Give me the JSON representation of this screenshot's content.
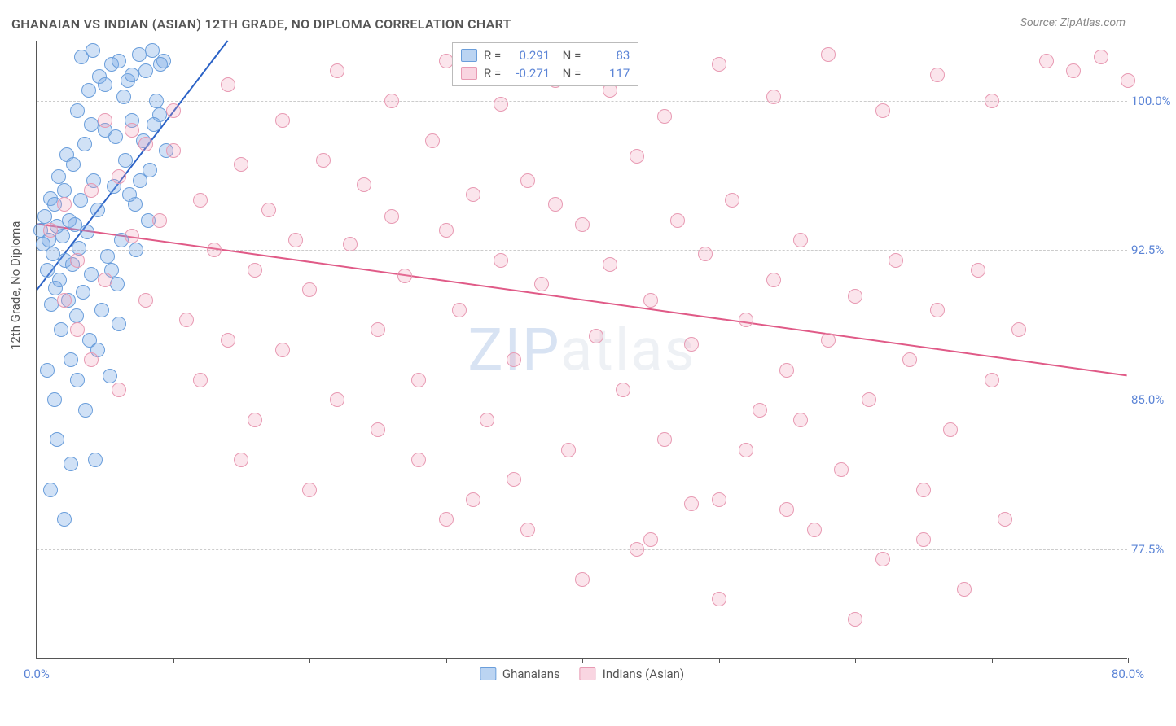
{
  "title": "GHANAIAN VS INDIAN (ASIAN) 12TH GRADE, NO DIPLOMA CORRELATION CHART",
  "source": "Source: ZipAtlas.com",
  "ylabel": "12th Grade, No Diploma",
  "watermark": "ZIPatlas",
  "chart": {
    "type": "scatter",
    "xlim": [
      0,
      80
    ],
    "ylim": [
      72,
      103
    ],
    "xticks_minor": [
      0,
      10,
      20,
      30,
      40,
      50,
      60,
      70,
      80
    ],
    "xtick_labels": [
      {
        "x": 0,
        "label": "0.0%"
      },
      {
        "x": 80,
        "label": "80.0%"
      }
    ],
    "ytick_labels": [
      {
        "y": 100,
        "label": "100.0%"
      },
      {
        "y": 92.5,
        "label": "92.5%"
      },
      {
        "y": 85,
        "label": "85.0%"
      },
      {
        "y": 77.5,
        "label": "77.5%"
      }
    ],
    "background_color": "#ffffff",
    "grid_color": "#cccccc",
    "series": [
      {
        "name": "Ghanaians",
        "color_fill": "rgba(120,170,230,0.35)",
        "color_stroke": "#6a9edb",
        "trend": {
          "x0": 0,
          "y0": 90.5,
          "x1": 14,
          "y1": 103,
          "color": "#2b62c6",
          "width": 2
        },
        "R": "0.291",
        "N": "83",
        "points": [
          [
            0.3,
            93.5
          ],
          [
            0.5,
            92.8
          ],
          [
            0.6,
            94.2
          ],
          [
            0.8,
            91.5
          ],
          [
            0.9,
            93.0
          ],
          [
            1.0,
            95.1
          ],
          [
            1.1,
            89.8
          ],
          [
            1.2,
            92.3
          ],
          [
            1.3,
            94.8
          ],
          [
            1.4,
            90.6
          ],
          [
            1.5,
            93.7
          ],
          [
            1.6,
            96.2
          ],
          [
            1.7,
            91.0
          ],
          [
            1.8,
            88.5
          ],
          [
            1.9,
            93.2
          ],
          [
            2.0,
            95.5
          ],
          [
            2.1,
            92.0
          ],
          [
            2.2,
            97.3
          ],
          [
            2.3,
            90.0
          ],
          [
            2.4,
            94.0
          ],
          [
            2.5,
            87.0
          ],
          [
            2.6,
            91.8
          ],
          [
            2.7,
            96.8
          ],
          [
            2.8,
            93.8
          ],
          [
            2.9,
            89.2
          ],
          [
            3.0,
            99.5
          ],
          [
            3.1,
            92.6
          ],
          [
            3.2,
            95.0
          ],
          [
            3.4,
            90.4
          ],
          [
            3.5,
            97.8
          ],
          [
            3.6,
            84.5
          ],
          [
            3.7,
            93.4
          ],
          [
            3.8,
            100.5
          ],
          [
            3.9,
            88.0
          ],
          [
            4.0,
            91.3
          ],
          [
            4.2,
            96.0
          ],
          [
            4.3,
            82.0
          ],
          [
            4.5,
            94.5
          ],
          [
            4.6,
            101.2
          ],
          [
            4.8,
            89.5
          ],
          [
            5.0,
            98.5
          ],
          [
            5.2,
            92.2
          ],
          [
            5.4,
            86.2
          ],
          [
            5.5,
            101.8
          ],
          [
            5.7,
            95.7
          ],
          [
            5.9,
            90.8
          ],
          [
            6.0,
            102.0
          ],
          [
            6.2,
            93.0
          ],
          [
            6.5,
            97.0
          ],
          [
            6.7,
            101.0
          ],
          [
            7.0,
            99.0
          ],
          [
            7.2,
            94.8
          ],
          [
            7.5,
            102.3
          ],
          [
            7.8,
            98.0
          ],
          [
            8.0,
            101.5
          ],
          [
            8.3,
            96.5
          ],
          [
            8.5,
            102.5
          ],
          [
            8.8,
            100.0
          ],
          [
            9.0,
            99.3
          ],
          [
            9.3,
            102.0
          ],
          [
            9.5,
            97.5
          ],
          [
            1.0,
            80.5
          ],
          [
            1.5,
            83.0
          ],
          [
            2.0,
            79.0
          ],
          [
            2.5,
            81.8
          ],
          [
            0.8,
            86.5
          ],
          [
            1.3,
            85.0
          ],
          [
            3.0,
            86.0
          ],
          [
            4.0,
            98.8
          ],
          [
            4.5,
            87.5
          ],
          [
            5.0,
            100.8
          ],
          [
            5.5,
            91.5
          ],
          [
            6.0,
            88.8
          ],
          [
            6.8,
            95.3
          ],
          [
            7.3,
            92.5
          ],
          [
            5.8,
            98.2
          ],
          [
            6.4,
            100.2
          ],
          [
            7.0,
            101.3
          ],
          [
            7.6,
            96.0
          ],
          [
            8.2,
            94.0
          ],
          [
            8.6,
            98.8
          ],
          [
            9.1,
            101.8
          ],
          [
            3.3,
            102.2
          ],
          [
            4.1,
            102.5
          ]
        ]
      },
      {
        "name": "Indians (Asian)",
        "color_fill": "rgba(240,150,180,0.25)",
        "color_stroke": "#e89ab3",
        "trend": {
          "x0": 0,
          "y0": 93.8,
          "x1": 80,
          "y1": 86.2,
          "color": "#e05a87",
          "width": 2
        },
        "R": "-0.271",
        "N": "117",
        "points": [
          [
            1,
            93.5
          ],
          [
            2,
            94.8
          ],
          [
            3,
            92.0
          ],
          [
            4,
            95.5
          ],
          [
            5,
            91.0
          ],
          [
            6,
            96.2
          ],
          [
            7,
            93.2
          ],
          [
            8,
            90.0
          ],
          [
            9,
            94.0
          ],
          [
            10,
            97.5
          ],
          [
            11,
            89.0
          ],
          [
            12,
            95.0
          ],
          [
            13,
            92.5
          ],
          [
            14,
            88.0
          ],
          [
            15,
            96.8
          ],
          [
            16,
            91.5
          ],
          [
            17,
            94.5
          ],
          [
            18,
            87.5
          ],
          [
            19,
            93.0
          ],
          [
            20,
            90.5
          ],
          [
            21,
            97.0
          ],
          [
            22,
            85.0
          ],
          [
            23,
            92.8
          ],
          [
            24,
            95.8
          ],
          [
            25,
            88.5
          ],
          [
            26,
            94.2
          ],
          [
            27,
            91.2
          ],
          [
            28,
            86.0
          ],
          [
            29,
            98.0
          ],
          [
            30,
            93.5
          ],
          [
            31,
            89.5
          ],
          [
            32,
            95.3
          ],
          [
            33,
            84.0
          ],
          [
            34,
            92.0
          ],
          [
            35,
            87.0
          ],
          [
            36,
            96.0
          ],
          [
            37,
            90.8
          ],
          [
            38,
            94.8
          ],
          [
            39,
            82.5
          ],
          [
            40,
            93.8
          ],
          [
            41,
            88.2
          ],
          [
            42,
            91.8
          ],
          [
            43,
            85.5
          ],
          [
            44,
            97.2
          ],
          [
            45,
            90.0
          ],
          [
            46,
            83.0
          ],
          [
            47,
            94.0
          ],
          [
            48,
            87.8
          ],
          [
            49,
            92.3
          ],
          [
            50,
            80.0
          ],
          [
            51,
            95.0
          ],
          [
            52,
            89.0
          ],
          [
            53,
            84.5
          ],
          [
            54,
            91.0
          ],
          [
            55,
            86.5
          ],
          [
            56,
            93.0
          ],
          [
            57,
            78.5
          ],
          [
            58,
            88.0
          ],
          [
            59,
            81.5
          ],
          [
            60,
            90.2
          ],
          [
            61,
            85.0
          ],
          [
            62,
            77.0
          ],
          [
            63,
            92.0
          ],
          [
            64,
            87.0
          ],
          [
            65,
            80.5
          ],
          [
            66,
            89.5
          ],
          [
            67,
            83.5
          ],
          [
            68,
            75.5
          ],
          [
            69,
            91.5
          ],
          [
            70,
            86.0
          ],
          [
            71,
            79.0
          ],
          [
            72,
            88.5
          ],
          [
            10,
            99.5
          ],
          [
            14,
            100.8
          ],
          [
            18,
            99.0
          ],
          [
            22,
            101.5
          ],
          [
            26,
            100.0
          ],
          [
            30,
            102.0
          ],
          [
            34,
            99.8
          ],
          [
            38,
            101.0
          ],
          [
            42,
            100.5
          ],
          [
            46,
            99.2
          ],
          [
            50,
            101.8
          ],
          [
            54,
            100.2
          ],
          [
            58,
            102.3
          ],
          [
            62,
            99.5
          ],
          [
            66,
            101.3
          ],
          [
            70,
            100.0
          ],
          [
            74,
            102.0
          ],
          [
            76,
            101.5
          ],
          [
            78,
            102.2
          ],
          [
            80,
            101.0
          ],
          [
            15,
            82.0
          ],
          [
            20,
            80.5
          ],
          [
            25,
            83.5
          ],
          [
            30,
            79.0
          ],
          [
            35,
            81.0
          ],
          [
            40,
            76.0
          ],
          [
            45,
            78.0
          ],
          [
            50,
            75.0
          ],
          [
            55,
            79.5
          ],
          [
            60,
            74.0
          ],
          [
            65,
            78.0
          ],
          [
            8,
            97.8
          ],
          [
            12,
            86.0
          ],
          [
            16,
            84.0
          ],
          [
            28,
            82.0
          ],
          [
            32,
            80.0
          ],
          [
            36,
            78.5
          ],
          [
            44,
            77.5
          ],
          [
            48,
            79.8
          ],
          [
            52,
            82.5
          ],
          [
            56,
            84.0
          ],
          [
            2,
            90.0
          ],
          [
            3,
            88.5
          ],
          [
            4,
            87.0
          ],
          [
            5,
            99.0
          ],
          [
            6,
            85.5
          ],
          [
            7,
            98.5
          ]
        ]
      }
    ]
  },
  "legend_bottom": [
    {
      "swatch": "blue",
      "label": "Ghanaians"
    },
    {
      "swatch": "pink",
      "label": "Indians (Asian)"
    }
  ]
}
